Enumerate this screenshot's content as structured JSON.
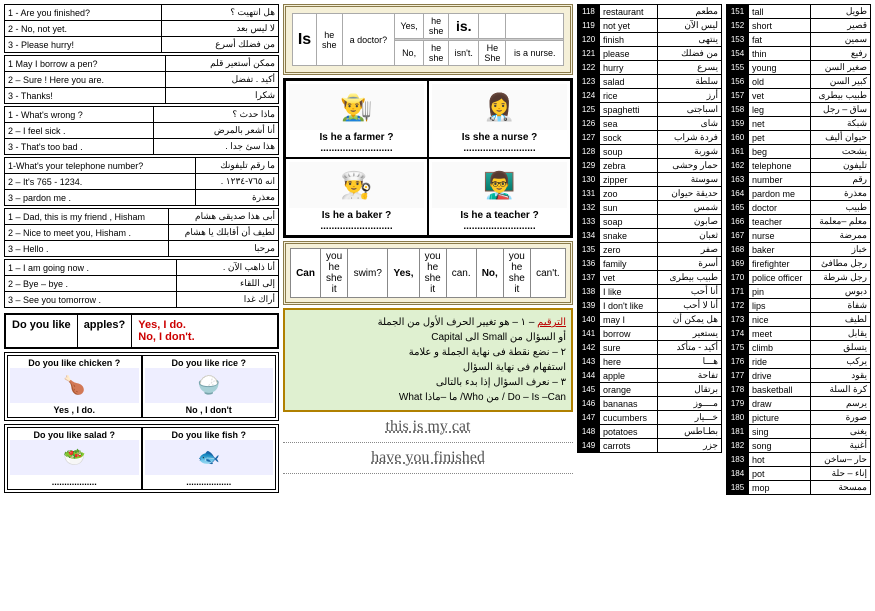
{
  "dialogues": [
    [
      [
        "1 - Are you finished?",
        "هل انتهيت ؟"
      ],
      [
        "2 - No, not yet.",
        "لا ليس بعد"
      ],
      [
        "3 - Please hurry!",
        "من فضلك أسرع"
      ]
    ],
    [
      [
        "1 May I borrow a pen?",
        "ممكن أستعير قلم"
      ],
      [
        "2 – Sure ! Here you are.",
        "أكيد . تفضل"
      ],
      [
        "3 - Thanks!",
        "شكرا"
      ]
    ],
    [
      [
        "1 - What's wrong ?",
        "ماذا حدث ؟"
      ],
      [
        "2 – I feel sick .",
        "أنا أشعر بالمرض"
      ],
      [
        "3 - That's too bad .",
        "هذا سئ جدا ."
      ]
    ],
    [
      [
        "1-What's your telephone number?",
        "ما رقم تليفونك"
      ],
      [
        "2 – It's 765 - 1234.",
        "انه ٧٦٥-١٢٣٤ ."
      ],
      [
        "3 – pardon me .",
        "معذرة"
      ]
    ],
    [
      [
        "1 – Dad, this is my friend , Hisham",
        "أبى هذا صديقى هشام"
      ],
      [
        "2 – Nice to meet you, Hisham .",
        "لطيف أن أقابلك يا هشام"
      ],
      [
        "3 – Hello .",
        "مرحبا"
      ]
    ],
    [
      [
        "1 – I am going now .",
        "أنا ذاهب الآن ."
      ],
      [
        "2 – Bye – bye .",
        "إلى اللقاء"
      ],
      [
        "3 – See you tomorrow .",
        "أراك غدا"
      ]
    ]
  ],
  "like": {
    "q": "Do you like",
    "obj": "apples?",
    "y": "Yes, I do.",
    "n": "No, I don't."
  },
  "like_pics": [
    [
      [
        "Do you like chicken ?",
        "🍗",
        "Yes , I do."
      ],
      [
        "Do you like rice ?",
        "🍚",
        "No , I don't"
      ]
    ],
    [
      [
        "Do you like salad ?",
        "🥗",
        ".................."
      ],
      [
        "Do you like fish ?",
        "🐟",
        ".................."
      ]
    ]
  ],
  "is_panel": {
    "subj": "Is",
    "opts": [
      "he",
      "she"
    ],
    "pred": "a doctor?",
    "yes": [
      "Yes,",
      "he",
      "she",
      "is."
    ],
    "no": [
      "No,",
      "he",
      "she",
      "isn't.",
      "He",
      "She",
      "is a nurse."
    ]
  },
  "occupations": [
    [
      [
        "👨‍🌾",
        "Is he a farmer ?"
      ],
      [
        "👩‍⚕️",
        "Is she a nurse ?"
      ]
    ],
    [
      [
        "👨‍🍳",
        "Is he a baker ?"
      ],
      [
        "👨‍🏫",
        "Is he a teacher ?"
      ]
    ]
  ],
  "can": {
    "subj": [
      "you",
      "he",
      "she",
      "it"
    ],
    "v": "swim?",
    "yes": "can.",
    "no": "can't."
  },
  "note": {
    "title": "الترقيم",
    "l1": "١ – هو تغيير الحرف الأول من الجملة",
    "l2": "أو السؤال من Small الى Capital",
    "l3": "٢ – نضع نقطة فى نهاية الجملة و علامة",
    "l4": "استفهام فى نهاية السؤال",
    "l5": "٣ – نعرف السؤال إذا بدء بالتالى",
    "l6": "Do – Is –Can / من Who/ ما –ماذا What"
  },
  "hw1": "this is my cat",
  "hw2": "have you finished",
  "vocab1": [
    [
      118,
      "restaurant",
      "مطعم"
    ],
    [
      119,
      "not yet",
      "ليس الآن"
    ],
    [
      120,
      "finish",
      "ينتهى"
    ],
    [
      121,
      "please",
      "من فضلك"
    ],
    [
      122,
      "hurry",
      "يسرع"
    ],
    [
      123,
      "salad",
      "سلطة"
    ],
    [
      124,
      "rice",
      "أرز"
    ],
    [
      125,
      "spaghetti",
      "اسباجتى"
    ],
    [
      126,
      "sea",
      "شاى"
    ],
    [
      127,
      "sock",
      "فردة شراب"
    ],
    [
      128,
      "soup",
      "شوربة"
    ],
    [
      129,
      "zebra",
      "حمار وحشى"
    ],
    [
      130,
      "zipper",
      "سوستة"
    ],
    [
      131,
      "zoo",
      "حديقة حيوان"
    ],
    [
      132,
      "sun",
      "شمس"
    ],
    [
      133,
      "soap",
      "صابون"
    ],
    [
      134,
      "snake",
      "ثعبان"
    ],
    [
      135,
      "zero",
      "صفر"
    ],
    [
      136,
      "family",
      "أسرة"
    ],
    [
      137,
      "vet",
      "طبيب بيطرى"
    ],
    [
      138,
      "I like",
      "أنا أحب"
    ],
    [
      139,
      "I don't like",
      "أنا لا أحب"
    ],
    [
      140,
      "may I",
      "هل يمكن أن"
    ],
    [
      141,
      "borrow",
      "يستعير"
    ],
    [
      142,
      "sure",
      "أكيد - متأكد"
    ],
    [
      143,
      "here",
      "هـــا"
    ],
    [
      144,
      "apple",
      "تفاحة"
    ],
    [
      145,
      "orange",
      "برتقال"
    ],
    [
      146,
      "bananas",
      "مــــوز"
    ],
    [
      147,
      "cucumbers",
      "خـــيار"
    ],
    [
      148,
      "potatoes",
      "بطـاطس"
    ],
    [
      149,
      "carrots",
      "جزر"
    ]
  ],
  "vocab2": [
    [
      151,
      "tall",
      "طويل"
    ],
    [
      152,
      "short",
      "قصير"
    ],
    [
      153,
      "fat",
      "سمين"
    ],
    [
      154,
      "thin",
      "رفيع"
    ],
    [
      155,
      "young",
      "صغير السن"
    ],
    [
      156,
      "old",
      "كبير السن"
    ],
    [
      157,
      "vet",
      "طبيب بيطرى"
    ],
    [
      158,
      "leg",
      "ساق – رجل"
    ],
    [
      159,
      "net",
      "شبكة"
    ],
    [
      160,
      "pet",
      "حيوان أليف"
    ],
    [
      161,
      "beg",
      "يشحت"
    ],
    [
      162,
      "telephone",
      "تليفون"
    ],
    [
      163,
      "number",
      "رقم"
    ],
    [
      164,
      "pardon me",
      "معذرة"
    ],
    [
      165,
      "doctor",
      "طبيب"
    ],
    [
      166,
      "teacher",
      "معلم –معلمة"
    ],
    [
      167,
      "nurse",
      "ممرضة"
    ],
    [
      168,
      "baker",
      "خباز"
    ],
    [
      169,
      "firefighter",
      "رجل مطافئ"
    ],
    [
      170,
      "police officer",
      "رجل شرطة"
    ],
    [
      171,
      "pin",
      "دبوس"
    ],
    [
      172,
      "lips",
      "شفاة"
    ],
    [
      173,
      "nice",
      "لطيف"
    ],
    [
      174,
      "meet",
      "يقابل"
    ],
    [
      175,
      "climb",
      "يتسلق"
    ],
    [
      176,
      "ride",
      "يركب"
    ],
    [
      177,
      "drive",
      "يقود"
    ],
    [
      178,
      "basketball",
      "كرة السلة"
    ],
    [
      179,
      "draw",
      "يرسم"
    ],
    [
      180,
      "picture",
      "صورة"
    ],
    [
      181,
      "sing",
      "يغنى"
    ],
    [
      182,
      "song",
      "أغنية"
    ],
    [
      183,
      "hot",
      "حار –ساخن"
    ],
    [
      184,
      "pot",
      "إناء – حلة"
    ],
    [
      185,
      "mop",
      "ممسحة"
    ]
  ]
}
